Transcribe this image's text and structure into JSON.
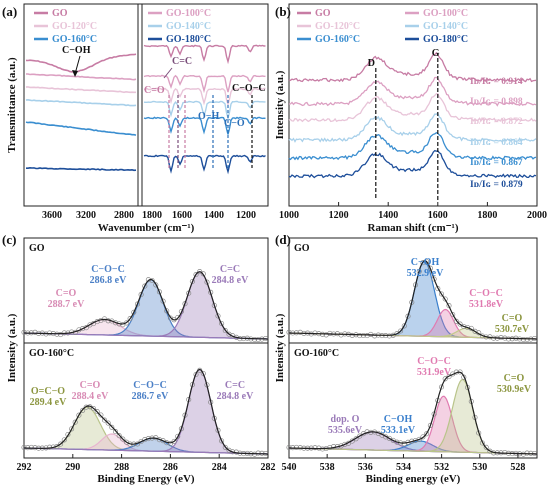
{
  "chart_data": [
    {
      "type": "line",
      "panel": "(a)",
      "xlabel": "Wavenumber (cm⁻¹)",
      "ylabel": "Transmittance (a.u.)",
      "x_ticks_left": [
        "3600",
        "3200",
        "2800"
      ],
      "x_ticks_right": [
        "1800",
        "1600",
        "1400",
        "1200"
      ],
      "legend": [
        "GO",
        "GO-100°C",
        "GO-120°C",
        "GO-140°C",
        "GO-160°C",
        "GO-180°C"
      ],
      "annotations": [
        "C−OH",
        "C=C",
        "C=O",
        "O−H",
        "C−O",
        "C−O−C"
      ],
      "colors": [
        "#c77ca4",
        "#dca0c2",
        "#e8c4d8",
        "#a8d0ea",
        "#3a8ed0",
        "#1d4e9a"
      ]
    },
    {
      "type": "line",
      "panel": "(b)",
      "xlabel": "Raman shift (cm⁻¹)",
      "ylabel": "Intensity (a.u.)",
      "xlim": [
        1000,
        2000
      ],
      "x_ticks": [
        "1000",
        "1200",
        "1400",
        "1600",
        "1800",
        "2000"
      ],
      "legend": [
        "GO",
        "GO-100°C",
        "GO-120°C",
        "GO-140°C",
        "GO-160°C",
        "GO-180°C"
      ],
      "bands": [
        "D",
        "G"
      ],
      "ratio_label": "Iᴅ/Iɢ =",
      "ratios": [
        "0.914",
        "0.898",
        "0.872",
        "0.864",
        "0.867",
        "0.879"
      ],
      "d_position": 1350,
      "g_position": 1600
    },
    {
      "type": "area",
      "panel": "(c)",
      "xlabel": "Binding Energy (eV)",
      "ylabel": "Intensity (a.u.)",
      "xlim": [
        292,
        282
      ],
      "x_ticks": [
        "292",
        "290",
        "288",
        "286",
        "284",
        "282"
      ],
      "subpanels": [
        {
          "name": "GO",
          "peaks": [
            {
              "label": "C=O",
              "value": "288.7 eV",
              "center": 288.7,
              "height": 0.17,
              "width": 0.9,
              "color": "#e8b4cf"
            },
            {
              "label": "C−O−C",
              "value": "286.8 eV",
              "center": 286.8,
              "height": 0.62,
              "width": 0.7,
              "color": "#4a7fc6"
            },
            {
              "label": "C=C",
              "value": "284.8 eV",
              "center": 284.8,
              "height": 0.72,
              "width": 0.72,
              "color": "#9a7ab8"
            }
          ]
        },
        {
          "name": "GO-160°C",
          "peaks": [
            {
              "label": "O=C−O",
              "value": "289.4 eV",
              "center": 289.4,
              "height": 0.42,
              "width": 0.75,
              "color": "#b9c48a"
            },
            {
              "label": "C=O",
              "value": "288.4 eV",
              "center": 288.4,
              "height": 0.16,
              "width": 0.6,
              "color": "#e8b4cf"
            },
            {
              "label": "C−O−C",
              "value": "286.7 eV",
              "center": 286.7,
              "height": 0.13,
              "width": 0.8,
              "color": "#4a7fc6"
            },
            {
              "label": "C=C",
              "value": "284.8 eV",
              "center": 284.8,
              "height": 0.82,
              "width": 0.65,
              "color": "#9a7ab8"
            }
          ]
        }
      ]
    },
    {
      "type": "area",
      "panel": "(d)",
      "xlabel": "Binding energy (eV)",
      "ylabel": "Intensity (a.u.)",
      "xlim": [
        540,
        527
      ],
      "x_ticks": [
        "540",
        "538",
        "536",
        "534",
        "532",
        "530",
        "528"
      ],
      "subpanels": [
        {
          "name": "GO",
          "peaks": [
            {
              "label": "C−OH",
              "value": "532.9 eV",
              "center": 532.9,
              "height": 0.82,
              "width": 0.75,
              "color": "#3a7fcc"
            },
            {
              "label": "C−O−C",
              "value": "531.8eV",
              "center": 531.8,
              "height": 0.3,
              "width": 0.6,
              "color": "#e07ab0"
            },
            {
              "label": "C=O",
              "value": "530.7eV",
              "center": 530.7,
              "height": 0.1,
              "width": 0.7,
              "color": "#c3c98a"
            }
          ]
        },
        {
          "name": "GO-160°C",
          "peaks": [
            {
              "label": "dop. O",
              "value": "535.6eV",
              "center": 535.6,
              "height": 0.18,
              "width": 1.3,
              "color": "#9a7ab8"
            },
            {
              "label": "C−OH",
              "value": "533.1eV",
              "center": 533.1,
              "height": 0.1,
              "width": 0.9,
              "color": "#3a7fcc"
            },
            {
              "label": "C−O−C",
              "value": "531.9eV",
              "center": 531.9,
              "height": 0.55,
              "width": 0.65,
              "color": "#e07ab0"
            },
            {
              "label": "C=O",
              "value": "530.9eV",
              "center": 530.9,
              "height": 0.72,
              "width": 0.75,
              "color": "#b9c48a"
            }
          ]
        }
      ]
    }
  ],
  "panel_labels": [
    "(a)",
    "(b)",
    "(c)",
    "(d)"
  ]
}
